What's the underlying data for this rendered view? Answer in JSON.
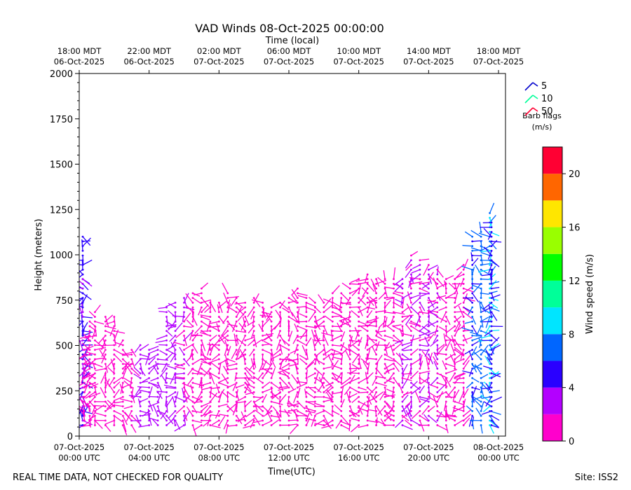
{
  "chart_data": {
    "type": "wind-barb",
    "title": "VAD Winds 08-Oct-2025 00:00:00",
    "top_axis_label": "Time (local)",
    "xlabel": "Time(UTC)",
    "ylabel": "Height (meters)",
    "ylim": [
      0,
      2000
    ],
    "yticks": [
      0,
      250,
      500,
      750,
      1000,
      1250,
      1500,
      1750,
      2000
    ],
    "xlim_hours": [
      0,
      24.4
    ],
    "bottom_ticks": [
      {
        "h": 0,
        "line1": "07-Oct-2025",
        "line2": "00:00 UTC"
      },
      {
        "h": 4,
        "line1": "07-Oct-2025",
        "line2": "04:00 UTC"
      },
      {
        "h": 8,
        "line1": "07-Oct-2025",
        "line2": "08:00 UTC"
      },
      {
        "h": 12,
        "line1": "07-Oct-2025",
        "line2": "12:00 UTC"
      },
      {
        "h": 16,
        "line1": "07-Oct-2025",
        "line2": "16:00 UTC"
      },
      {
        "h": 20,
        "line1": "07-Oct-2025",
        "line2": "20:00 UTC"
      },
      {
        "h": 24,
        "line1": "08-Oct-2025",
        "line2": "00:00 UTC"
      }
    ],
    "top_ticks": [
      {
        "h": 0,
        "line1": "18:00 MDT",
        "line2": "06-Oct-2025"
      },
      {
        "h": 4,
        "line1": "22:00 MDT",
        "line2": "06-Oct-2025"
      },
      {
        "h": 8,
        "line1": "02:00 MDT",
        "line2": "07-Oct-2025"
      },
      {
        "h": 12,
        "line1": "06:00 MDT",
        "line2": "07-Oct-2025"
      },
      {
        "h": 16,
        "line1": "10:00 MDT",
        "line2": "07-Oct-2025"
      },
      {
        "h": 20,
        "line1": "14:00 MDT",
        "line2": "07-Oct-2025"
      },
      {
        "h": 24,
        "line1": "18:00 MDT",
        "line2": "07-Oct-2025"
      }
    ],
    "colorbar": {
      "label": "Wind speed (m/s)",
      "range": [
        0,
        22
      ],
      "ticks": [
        0,
        4,
        8,
        12,
        16,
        20
      ],
      "bins": [
        {
          "from": 0,
          "to": 2,
          "color": "#ff00cc"
        },
        {
          "from": 2,
          "to": 4,
          "color": "#b300ff"
        },
        {
          "from": 4,
          "to": 6,
          "color": "#2a00ff"
        },
        {
          "from": 6,
          "to": 8,
          "color": "#0066ff"
        },
        {
          "from": 8,
          "to": 10,
          "color": "#00e5ff"
        },
        {
          "from": 10,
          "to": 12,
          "color": "#00ff99"
        },
        {
          "from": 12,
          "to": 14,
          "color": "#00ff00"
        },
        {
          "from": 14,
          "to": 16,
          "color": "#99ff00"
        },
        {
          "from": 16,
          "to": 18,
          "color": "#ffe600"
        },
        {
          "from": 18,
          "to": 20,
          "color": "#ff6600"
        },
        {
          "from": 20,
          "to": 22,
          "color": "#ff0033"
        }
      ]
    },
    "barb_legend": {
      "title_line1": "Barb flags",
      "title_line2": "(m/s)",
      "entries": [
        {
          "label": "5",
          "color": "#0000cc"
        },
        {
          "label": "10",
          "color": "#00ff99"
        },
        {
          "label": "50",
          "color": "#ff0033"
        }
      ]
    },
    "profiles": [
      {
        "t": 0.2,
        "top": 1100,
        "speed": 5
      },
      {
        "t": 0.2,
        "top": 960,
        "speed": 4
      },
      {
        "t": 0.3,
        "top": 500,
        "speed": 1
      },
      {
        "t": 0.6,
        "top": 650,
        "speed": 1
      },
      {
        "t": 0.9,
        "top": 690,
        "speed": 1
      },
      {
        "t": 1.5,
        "top": 660,
        "speed": 1
      },
      {
        "t": 2.0,
        "top": 660,
        "speed": 1
      },
      {
        "t": 2.5,
        "top": 550,
        "speed": 1
      },
      {
        "t": 3.0,
        "top": 500,
        "speed": 1
      },
      {
        "t": 3.5,
        "top": 520,
        "speed": 3
      },
      {
        "t": 4.0,
        "top": 500,
        "speed": 3
      },
      {
        "t": 4.5,
        "top": 480,
        "speed": 3
      },
      {
        "t": 5.0,
        "top": 710,
        "speed": 3
      },
      {
        "t": 5.5,
        "top": 760,
        "speed": 3
      },
      {
        "t": 6.0,
        "top": 780,
        "speed": 2
      },
      {
        "t": 6.5,
        "top": 800,
        "speed": 1
      },
      {
        "t": 7.0,
        "top": 830,
        "speed": 1
      },
      {
        "t": 7.5,
        "top": 750,
        "speed": 1
      },
      {
        "t": 8.0,
        "top": 750,
        "speed": 1
      },
      {
        "t": 8.5,
        "top": 800,
        "speed": 1
      },
      {
        "t": 9.0,
        "top": 780,
        "speed": 1
      },
      {
        "t": 9.5,
        "top": 750,
        "speed": 1
      },
      {
        "t": 10.0,
        "top": 780,
        "speed": 1
      },
      {
        "t": 10.5,
        "top": 750,
        "speed": 1
      },
      {
        "t": 11.0,
        "top": 730,
        "speed": 1
      },
      {
        "t": 11.5,
        "top": 740,
        "speed": 1
      },
      {
        "t": 12.0,
        "top": 780,
        "speed": 1
      },
      {
        "t": 12.5,
        "top": 820,
        "speed": 1
      },
      {
        "t": 13.0,
        "top": 780,
        "speed": 1
      },
      {
        "t": 13.5,
        "top": 740,
        "speed": 1
      },
      {
        "t": 14.0,
        "top": 760,
        "speed": 1
      },
      {
        "t": 14.5,
        "top": 790,
        "speed": 1
      },
      {
        "t": 15.0,
        "top": 810,
        "speed": 1
      },
      {
        "t": 15.5,
        "top": 850,
        "speed": 1
      },
      {
        "t": 16.0,
        "top": 880,
        "speed": 1
      },
      {
        "t": 16.5,
        "top": 900,
        "speed": 1
      },
      {
        "t": 17.0,
        "top": 880,
        "speed": 1
      },
      {
        "t": 17.5,
        "top": 870,
        "speed": 1
      },
      {
        "t": 18.0,
        "top": 880,
        "speed": 1
      },
      {
        "t": 18.5,
        "top": 880,
        "speed": 2
      },
      {
        "t": 19.0,
        "top": 1020,
        "speed": 2
      },
      {
        "t": 19.5,
        "top": 970,
        "speed": 2
      },
      {
        "t": 20.0,
        "top": 950,
        "speed": 2
      },
      {
        "t": 20.5,
        "top": 920,
        "speed": 2
      },
      {
        "t": 21.0,
        "top": 880,
        "speed": 1
      },
      {
        "t": 21.5,
        "top": 880,
        "speed": 1
      },
      {
        "t": 22.0,
        "top": 950,
        "speed": 1
      },
      {
        "t": 22.5,
        "top": 1100,
        "speed": 6
      },
      {
        "t": 23.0,
        "top": 1150,
        "speed": 7
      },
      {
        "t": 23.5,
        "top": 1250,
        "speed": 8
      },
      {
        "t": 23.6,
        "top": 1200,
        "speed": 5
      }
    ]
  },
  "footer": {
    "disclaimer": "REAL TIME DATA, NOT CHECKED FOR QUALITY",
    "site": "Site: ISS2"
  }
}
